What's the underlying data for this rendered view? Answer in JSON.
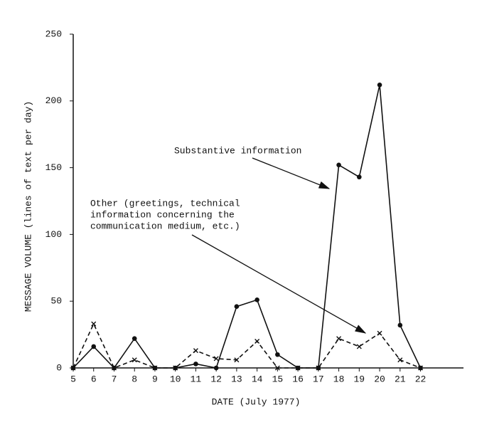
{
  "chart_data": {
    "type": "line",
    "y_label": "MESSAGE VOLUME (lines of text per day)",
    "x_label": "DATE (July 1977)",
    "x": [
      5,
      6,
      7,
      8,
      9,
      10,
      11,
      12,
      13,
      14,
      15,
      16,
      17,
      18,
      19,
      20,
      21,
      22
    ],
    "series": [
      {
        "color": "#111111",
        "style": "solid",
        "marker": "dot",
        "values": [
          0,
          16,
          0,
          22,
          0,
          0,
          3,
          0,
          46,
          51,
          10,
          0,
          0,
          152,
          143,
          212,
          32,
          0
        ]
      },
      {
        "color": "#111111",
        "style": "dashed",
        "marker": "x",
        "values": [
          0,
          33,
          0,
          6,
          0,
          0,
          13,
          7,
          6,
          20,
          0,
          0,
          0,
          22,
          16,
          26,
          6,
          0
        ]
      }
    ],
    "xlim": [
      5,
      24
    ],
    "xticks": [
      5,
      6,
      7,
      8,
      9,
      10,
      11,
      12,
      13,
      14,
      15,
      16,
      17,
      18,
      19,
      20,
      21,
      22
    ],
    "ylim": [
      0,
      250
    ],
    "yticks": [
      0,
      50,
      100,
      150,
      200,
      250
    ],
    "annotations": [
      {
        "lines": [
          "Substantive information"
        ]
      },
      {
        "lines": [
          "Other (greetings, technical",
          "information concerning the",
          "communication medium, etc.)"
        ]
      }
    ]
  }
}
